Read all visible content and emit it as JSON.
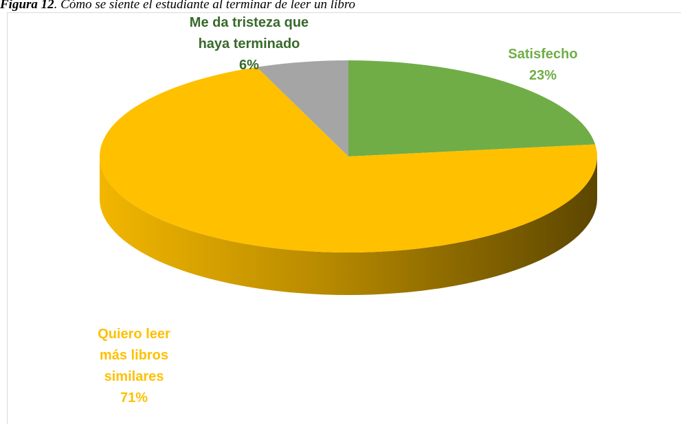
{
  "chart_data": {
    "type": "pie",
    "figure_label": "Figura 12",
    "title": ". Cómo se siente el estudiante al terminar de leer un libro",
    "categories": [
      "Satisfecho",
      "Quiero leer más libros similares",
      "Me da tristeza que haya terminado"
    ],
    "values": [
      23,
      71,
      6
    ],
    "value_labels": [
      "23%",
      "71%",
      "6%"
    ],
    "colors": [
      "#70ad47",
      "#ffc000",
      "#a5a5a5"
    ],
    "label_colors": [
      "#70ad47",
      "#ffc000",
      "#38692a"
    ],
    "style": "3d"
  }
}
